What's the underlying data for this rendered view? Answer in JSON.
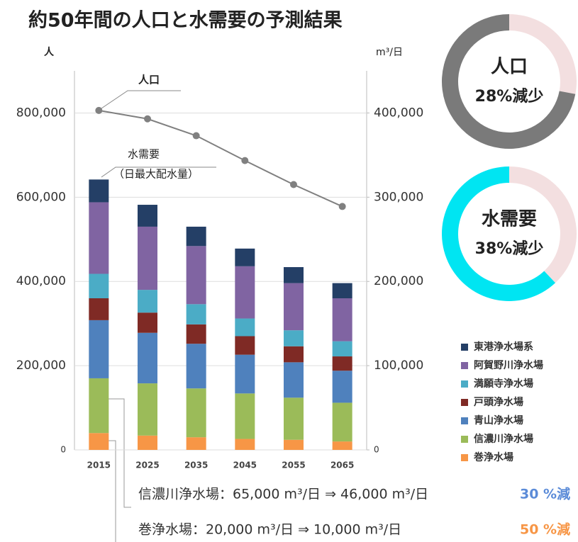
{
  "chart_data": [
    {
      "type": "bar",
      "stacked": true,
      "title": "約50年間の人口と水需要の予測結果",
      "y_label": "人",
      "y2_label": "m³/日",
      "categories": [
        "2015",
        "2025",
        "2035",
        "2045",
        "2055",
        "2065"
      ],
      "ylim": [
        0,
        900000
      ],
      "yticks": [
        0,
        {
          "value": 200000,
          "label": "200,000"
        },
        {
          "value": 400000,
          "label": "400,000"
        },
        {
          "value": 600000,
          "label": "600,000"
        },
        {
          "value": 800000,
          "label": "800,000"
        }
      ],
      "y2lim": [
        0,
        450000
      ],
      "y2ticks": [
        0,
        {
          "value": 100000,
          "label": "100,000"
        },
        {
          "value": 200000,
          "label": "200,000"
        },
        {
          "value": 300000,
          "label": "300,000"
        },
        {
          "value": 400000,
          "label": "400,000"
        }
      ],
      "grid": true,
      "series": [
        {
          "name": "巻浄水場",
          "color": "#f79646",
          "axis": "y2",
          "values": [
            20000,
            17000,
            15000,
            13000,
            12000,
            10000
          ]
        },
        {
          "name": "信濃川浄水場",
          "color": "#9bbb59",
          "axis": "y2",
          "values": [
            65000,
            62000,
            58000,
            54000,
            50000,
            46000
          ]
        },
        {
          "name": "青山浄水場",
          "color": "#4f81bd",
          "axis": "y2",
          "values": [
            69000,
            60000,
            53000,
            46000,
            42000,
            38000
          ]
        },
        {
          "name": "戸頭浄水場",
          "color": "#7f2a25",
          "axis": "y2",
          "values": [
            26000,
            24000,
            23000,
            22000,
            19000,
            17000
          ]
        },
        {
          "name": "満願寺浄水場",
          "color": "#4bacc6",
          "axis": "y2",
          "values": [
            29000,
            27000,
            24000,
            21000,
            19000,
            18000
          ]
        },
        {
          "name": "阿賀野川浄水場",
          "color": "#8064a2",
          "axis": "y2",
          "values": [
            85000,
            75000,
            69000,
            62000,
            56000,
            51000
          ]
        },
        {
          "name": "東港浄水場系",
          "color": "#243f66",
          "axis": "y2",
          "values": [
            27000,
            26000,
            23000,
            21000,
            19000,
            18000
          ]
        },
        {
          "name": "人口",
          "type": "line",
          "color": "#808080",
          "values": [
            806000,
            786000,
            746000,
            687000,
            630000,
            578000
          ]
        }
      ],
      "annotations": [
        "水需要",
        "（日最大配水量）"
      ],
      "notes": [
        {
          "text": "信濃川浄水場：65,000 m³/日 ⇒ 46,000 m³/日",
          "change": "30 %減",
          "color": "#5b8bd8"
        },
        {
          "text": "巻浄水場：20,000 m³/日 ⇒ 10,000 m³/日",
          "change": "50 %減",
          "color": "#f79646"
        }
      ]
    },
    {
      "type": "pie",
      "label": "人口",
      "value_text": "28%減少",
      "values": [
        28,
        72
      ],
      "colors": [
        "#f3dfe0",
        "#7a7a7a"
      ]
    },
    {
      "type": "pie",
      "label": "水需要",
      "value_text": "38%減少",
      "values": [
        38,
        62
      ],
      "colors": [
        "#f3dfe0",
        "#00e5f2"
      ]
    }
  ]
}
